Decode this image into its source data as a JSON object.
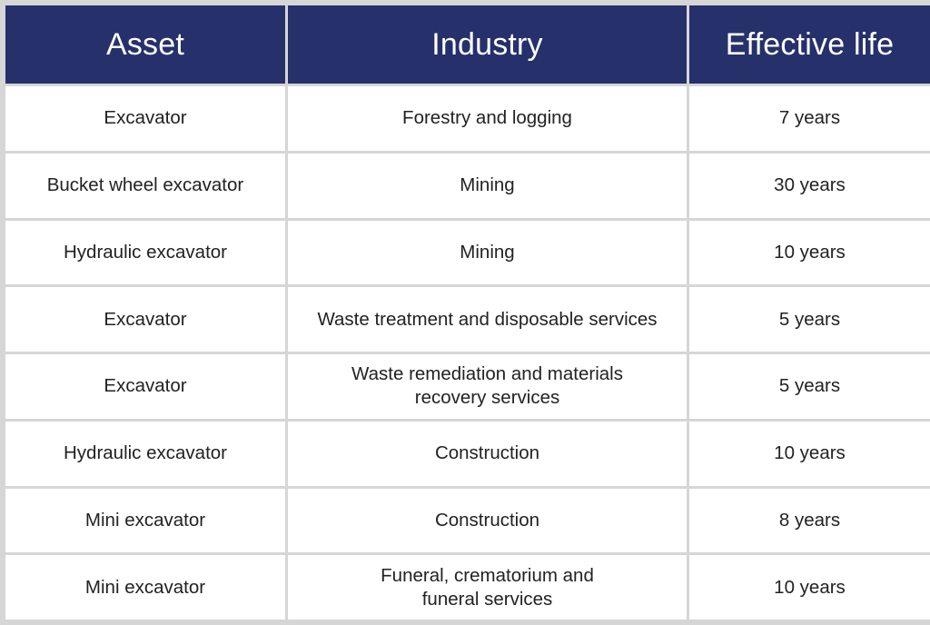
{
  "table": {
    "headers": [
      "Asset",
      "Industry",
      "Effective life"
    ],
    "rows": [
      {
        "asset": "Excavator",
        "industry": [
          "Forestry and logging"
        ],
        "life": "7 years"
      },
      {
        "asset": "Bucket wheel excavator",
        "industry": [
          "Mining"
        ],
        "life": "30 years"
      },
      {
        "asset": "Hydraulic excavator",
        "industry": [
          "Mining"
        ],
        "life": "10 years"
      },
      {
        "asset": "Excavator",
        "industry": [
          "Waste treatment and disposable services"
        ],
        "life": "5 years"
      },
      {
        "asset": "Excavator",
        "industry": [
          "Waste remediation and materials",
          "recovery services"
        ],
        "life": "5 years"
      },
      {
        "asset": "Hydraulic excavator",
        "industry": [
          "Construction"
        ],
        "life": "10 years"
      },
      {
        "asset": "Mini excavator",
        "industry": [
          "Construction"
        ],
        "life": "8 years"
      },
      {
        "asset": "Mini excavator",
        "industry": [
          "Funeral, crematorium and",
          "funeral services"
        ],
        "life": "10 years"
      }
    ]
  },
  "colors": {
    "header_bg": "#26306b",
    "header_text": "#ffffff",
    "grid": "#d6d6d6",
    "cell_text": "#222222"
  }
}
